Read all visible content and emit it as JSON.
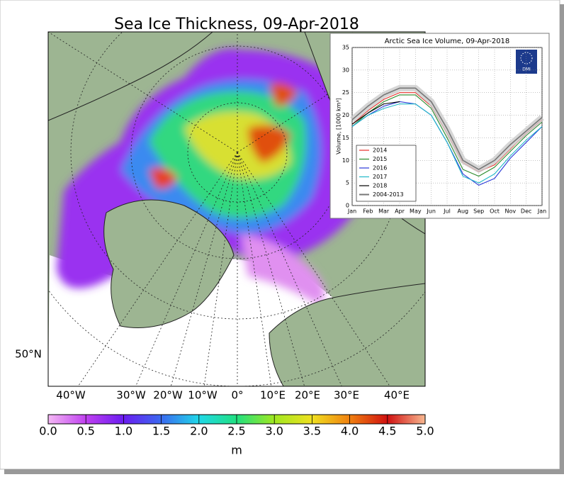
{
  "map": {
    "title": "Sea Ice Thickness, 09-Apr-2018",
    "longitude_labels": [
      "40°W",
      "30°W",
      "20°W",
      "10°W",
      "0°",
      "10°E",
      "20°E",
      "30°E",
      "40°E"
    ],
    "latitude_labels": [
      "50°N"
    ],
    "colorbar": {
      "lim": [
        0,
        5
      ],
      "label": "m",
      "ticks": [
        {
          "value": 0,
          "label": "0.0"
        },
        0.5,
        {
          "value": 1,
          "label": "1.0"
        },
        1.5,
        {
          "value": 2,
          "label": "2.0"
        },
        2.5,
        {
          "value": 3,
          "label": "3.0"
        },
        3.5,
        {
          "value": 4,
          "label": "4.0"
        },
        4.5,
        {
          "value": 5,
          "label": "5.0"
        }
      ]
    }
  },
  "chart_data": {
    "type": "line",
    "title": "Arctic Sea Ice Volume, 09-Apr-2018",
    "ylabel": "Volume, [1000 km³]",
    "logo": "DMI",
    "categories": [
      "Jan",
      "Feb",
      "Mar",
      "Apr",
      "May",
      "Jun",
      "Jul",
      "Aug",
      "Sep",
      "Oct",
      "Nov",
      "Dec",
      "Jan"
    ],
    "ylim": [
      0,
      35
    ],
    "yticks": [
      0,
      5,
      10,
      15,
      20,
      25,
      30,
      35
    ],
    "grid": true,
    "legend": "lower left",
    "series": [
      {
        "name": "2014",
        "color": "#e8302a",
        "values": [
          18,
          21,
          23.5,
          25,
          25,
          22,
          16,
          9.5,
          7.5,
          9,
          12.5,
          16,
          19
        ]
      },
      {
        "name": "2015",
        "color": "#2a8a2a",
        "values": [
          17.5,
          20.5,
          23,
          24.5,
          24.5,
          21.5,
          15,
          8,
          6.5,
          8.5,
          12,
          15.5,
          18.5
        ]
      },
      {
        "name": "2016",
        "color": "#2a3ad8",
        "values": [
          17.5,
          20,
          22,
          23,
          22.5,
          20,
          14,
          7,
          4.5,
          6,
          10.5,
          14,
          17.5
        ]
      },
      {
        "name": "2017",
        "color": "#20b8c8",
        "values": [
          17.5,
          20,
          21.5,
          22.5,
          22.5,
          20,
          14,
          6.5,
          5,
          7,
          11,
          14.5,
          17.5
        ]
      },
      {
        "name": "2018",
        "color": "#000000",
        "values": [
          18,
          20.5,
          22.5,
          23,
          null,
          null,
          null,
          null,
          null,
          null,
          null,
          null,
          null
        ]
      },
      {
        "name": "2004-2013",
        "color": "#777777",
        "values": [
          19,
          22,
          24.5,
          26,
          26,
          23,
          17,
          10,
          8,
          10,
          13.5,
          16.5,
          19.5
        ]
      }
    ]
  }
}
